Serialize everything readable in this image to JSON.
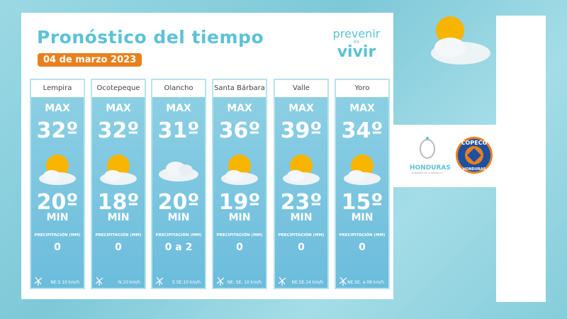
{
  "title": "Pronóstico del tiempo",
  "date": "04 de marzo 2023",
  "logo": {
    "line1": "prevenir",
    "line2": "es",
    "line3": "vivir"
  },
  "labels": {
    "max": "MAX",
    "min": "MIN",
    "precip": "PRECIPITACIÓN (MM)"
  },
  "departments": [
    {
      "name": "Lempira",
      "max": "32º",
      "min": "20º",
      "precip": "0",
      "wind": "NE.S 10 km/h",
      "icon": "sun-cloud"
    },
    {
      "name": "Ocotepeque",
      "max": "32º",
      "min": "18º",
      "precip": "0",
      "wind": "N.10 km/h",
      "icon": "sun-cloud"
    },
    {
      "name": "Olancho",
      "max": "31º",
      "min": "20º",
      "precip": "0 a 2",
      "wind": "E.SE.10 km/h",
      "icon": "cloud"
    },
    {
      "name": "Santa Bárbara",
      "max": "36º",
      "min": "19º",
      "precip": "0",
      "wind": "NE. SE. 10 km/h",
      "icon": "sun-cloud"
    },
    {
      "name": "Valle",
      "max": "39º",
      "min": "23º",
      "precip": "0",
      "wind": "NE.SE.14 km/h",
      "icon": "sun-cloud"
    },
    {
      "name": "Yoro",
      "max": "34º",
      "min": "15º",
      "precip": "0",
      "wind": "NE.SE. a 08 km/h",
      "icon": "sun-cloud"
    }
  ],
  "partners": {
    "honduras": "HONDURAS",
    "honduras_sub": "GOBIERNO DE LA REPÚBLICA",
    "copeco": "COPECO",
    "copeco_sub": "HONDURAS"
  },
  "colors": {
    "accent": "#5cc2d6",
    "date_bg": "#e8801e",
    "background": "#8ed2df"
  }
}
